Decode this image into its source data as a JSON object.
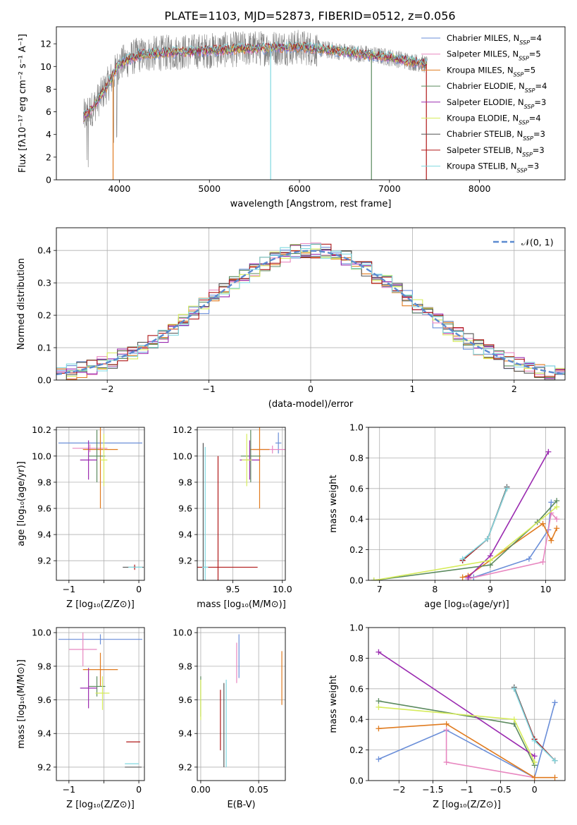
{
  "title": "PLATE=1103, MJD=52873, FIBERID=0512, z=0.056",
  "colors": {
    "chabrier_miles": "#6a8ed8",
    "salpeter_miles": "#e887c0",
    "kroupa_miles": "#e07b1f",
    "chabrier_elodie": "#5b8a5e",
    "salpeter_elodie": "#9a2ab0",
    "kroupa_elodie": "#d6ec5a",
    "chabrier_stelib": "#555555",
    "salpeter_stelib": "#b01818",
    "kroupa_stelib": "#7fd8e0",
    "data_spectrum": "#808080",
    "normal_curve": "#5b8ad0"
  },
  "legend_spectrum": [
    {
      "pre": "Chabrier MILES, N",
      "sub": "SSP",
      "post": "=4",
      "color": "#6a8ed8"
    },
    {
      "pre": "Salpeter MILES, N",
      "sub": "SSP",
      "post": "=5",
      "color": "#e887c0"
    },
    {
      "pre": "Kroupa MILES, N",
      "sub": "SSP",
      "post": "=5",
      "color": "#e07b1f"
    },
    {
      "pre": "Chabrier ELODIE, N",
      "sub": "SSP",
      "post": "=4",
      "color": "#5b8a5e"
    },
    {
      "pre": "Salpeter ELODIE, N",
      "sub": "SSP",
      "post": "=3",
      "color": "#9a2ab0"
    },
    {
      "pre": "Kroupa ELODIE, N",
      "sub": "SSP",
      "post": "=4",
      "color": "#d6ec5a"
    },
    {
      "pre": "Chabrier STELIB, N",
      "sub": "SSP",
      "post": "=3",
      "color": "#555555"
    },
    {
      "pre": "Salpeter STELIB, N",
      "sub": "SSP",
      "post": "=3",
      "color": "#b01818"
    },
    {
      "pre": "Kroupa STELIB, N",
      "sub": "SSP",
      "post": "=3",
      "color": "#7fd8e0"
    }
  ],
  "chart_data": [
    {
      "type": "line",
      "id": "spectrum",
      "xlabel": "wavelength [Angstrom, rest frame]",
      "ylabel": "Flux [fλ10⁻¹⁷ erg cm⁻² s⁻¹ A⁻¹]",
      "xlim": [
        3300,
        8950
      ],
      "ylim": [
        0,
        13.5
      ],
      "xticks": [
        4000,
        5000,
        6000,
        7000,
        8000
      ],
      "yticks": [
        0,
        2,
        4,
        6,
        8,
        10,
        12
      ],
      "model_continuum": {
        "x": [
          3600,
          3700,
          3800,
          3900,
          4000,
          4200,
          4500,
          5000,
          5500,
          6000,
          6500,
          7000,
          7400
        ],
        "y": [
          5.5,
          6.3,
          7.5,
          8.8,
          10.2,
          11.0,
          11.2,
          11.4,
          11.6,
          11.7,
          11.3,
          10.8,
          10.2
        ]
      }
    },
    {
      "type": "histogram",
      "id": "residuals",
      "xlabel": "(data-model)/error",
      "ylabel": "Normed distribution",
      "xlim": [
        -2.5,
        2.5
      ],
      "ylim": [
        0,
        0.47
      ],
      "xticks": [
        -2,
        -1,
        0,
        1,
        2
      ],
      "yticks": [
        0.0,
        0.1,
        0.2,
        0.3,
        0.4
      ],
      "legend": "𝒩(0, 1)",
      "bin_width": 0.1
    },
    {
      "type": "scatter",
      "id": "age_vs_Z",
      "xlabel": "Z [log₁₀(Z/Z⊙)]",
      "ylabel": "age  [log₁₀(age/yr)]",
      "xlim": [
        -1.18,
        0.08
      ],
      "ylim": [
        9.05,
        10.22
      ],
      "xticks": [
        -1,
        -0.5,
        0
      ],
      "xticklabels": [
        "−1",
        "",
        "0"
      ],
      "yticks": [
        9.2,
        9.4,
        9.6,
        9.8,
        10.0,
        10.2
      ],
      "points": [
        {
          "x": -0.55,
          "y": 10.1,
          "xerr": 0.6,
          "yerr": 0.02,
          "color": "#6a8ed8"
        },
        {
          "x": -0.7,
          "y": 10.06,
          "xerr": 0.25,
          "yerr": 0.03,
          "color": "#e887c0"
        },
        {
          "x": -0.55,
          "y": 10.05,
          "xerr": 0.25,
          "yerr": 0.45,
          "color": "#e07b1f"
        },
        {
          "x": -0.6,
          "y": 10.0,
          "xerr": 0.12,
          "yerr": 0.2,
          "color": "#5b8a5e"
        },
        {
          "x": -0.72,
          "y": 9.97,
          "xerr": 0.12,
          "yerr": 0.15,
          "color": "#9a2ab0"
        },
        {
          "x": -0.5,
          "y": 9.97,
          "xerr": 0.05,
          "yerr": 0.2,
          "color": "#d6ec5a"
        },
        {
          "x": -0.08,
          "y": 9.15,
          "xerr": 0.15,
          "yerr": 0.0,
          "color": "#555555"
        },
        {
          "x": -0.06,
          "y": 9.15,
          "xerr": 0.02,
          "yerr": 0.02,
          "color": "#b01818"
        },
        {
          "x": -0.05,
          "y": 9.15,
          "xerr": 0.1,
          "yerr": 0.0,
          "color": "#7fd8e0"
        }
      ]
    },
    {
      "type": "scatter",
      "id": "age_vs_mass",
      "xlabel": "mass [log₁₀(M/M⊙)]",
      "ylabel": "",
      "xlim": [
        9.14,
        10.03
      ],
      "ylim": [
        9.05,
        10.22
      ],
      "xticks": [
        9.5,
        10.0
      ],
      "xticklabels": [
        "9.5",
        "10.0"
      ],
      "yticks": [
        9.2,
        9.4,
        9.6,
        9.8,
        10.0,
        10.2
      ],
      "points": [
        {
          "x": 9.96,
          "y": 10.1,
          "xerr": 0.03,
          "yerr": 0.08,
          "color": "#6a8ed8"
        },
        {
          "x": 9.9,
          "y": 10.05,
          "xerr": 0.2,
          "yerr": 0.03,
          "color": "#e887c0"
        },
        {
          "x": 9.77,
          "y": 10.05,
          "xerr": 0.1,
          "yerr": 0.45,
          "color": "#e07b1f"
        },
        {
          "x": 9.68,
          "y": 10.0,
          "xerr": 0.1,
          "yerr": 0.2,
          "color": "#5b8a5e"
        },
        {
          "x": 9.67,
          "y": 9.97,
          "xerr": 0.1,
          "yerr": 0.15,
          "color": "#9a2ab0"
        },
        {
          "x": 9.64,
          "y": 9.97,
          "xerr": 0.05,
          "yerr": 0.2,
          "color": "#d6ec5a"
        },
        {
          "x": 9.2,
          "y": 9.15,
          "xerr": 0.0,
          "yerr": 0.95,
          "color": "#555555"
        },
        {
          "x": 9.35,
          "y": 9.15,
          "xerr": 0.4,
          "yerr": 0.85,
          "color": "#b01818"
        },
        {
          "x": 9.22,
          "y": 9.15,
          "xerr": 0.03,
          "yerr": 0.92,
          "color": "#7fd8e0"
        }
      ]
    },
    {
      "type": "line",
      "id": "weight_vs_age",
      "xlabel": "age  [log₁₀(age/yr)]",
      "ylabel": "mass weight",
      "xlim": [
        6.8,
        10.35
      ],
      "ylim": [
        0,
        1.0
      ],
      "xticks": [
        7,
        8,
        9,
        10
      ],
      "yticks": [
        0.0,
        0.2,
        0.4,
        0.6,
        0.8,
        1.0
      ],
      "series": [
        {
          "color": "#6a8ed8",
          "x": [
            8.7,
            9.7,
            10.05,
            10.1
          ],
          "y": [
            0.02,
            0.14,
            0.33,
            0.51
          ]
        },
        {
          "color": "#e887c0",
          "x": [
            8.6,
            9.95,
            10.1,
            10.2
          ],
          "y": [
            0.01,
            0.12,
            0.44,
            0.4
          ]
        },
        {
          "color": "#e07b1f",
          "x": [
            8.5,
            8.6,
            9.95,
            10.1,
            10.2
          ],
          "y": [
            0.02,
            0.03,
            0.37,
            0.26,
            0.34
          ]
        },
        {
          "color": "#5b8a5e",
          "x": [
            6.9,
            9.0,
            9.85,
            10.2
          ],
          "y": [
            0.0,
            0.1,
            0.38,
            0.52
          ]
        },
        {
          "color": "#9a2ab0",
          "x": [
            8.6,
            9.0,
            10.05
          ],
          "y": [
            0.02,
            0.16,
            0.84
          ]
        },
        {
          "color": "#d6ec5a",
          "x": [
            6.9,
            9.0,
            10.2
          ],
          "y": [
            0.0,
            0.13,
            0.48
          ]
        },
        {
          "color": "#555555",
          "x": [
            8.5,
            8.95,
            9.3
          ],
          "y": [
            0.13,
            0.27,
            0.61
          ]
        },
        {
          "color": "#b01818",
          "x": [
            8.5,
            8.95,
            9.3
          ],
          "y": [
            0.13,
            0.27,
            0.6
          ]
        },
        {
          "color": "#7fd8e0",
          "x": [
            8.5,
            8.95,
            9.3
          ],
          "y": [
            0.14,
            0.27,
            0.6
          ]
        }
      ]
    },
    {
      "type": "scatter",
      "id": "mass_vs_Z",
      "xlabel": "Z [log₁₀(Z/Z⊙)]",
      "ylabel": "mass [log₁₀(M/M⊙)]",
      "xlim": [
        -1.18,
        0.08
      ],
      "ylim": [
        9.12,
        10.03
      ],
      "xticks": [
        -1,
        -0.5,
        0
      ],
      "xticklabels": [
        "−1",
        "",
        "0"
      ],
      "yticks": [
        9.2,
        9.4,
        9.6,
        9.8,
        10.0
      ],
      "points": [
        {
          "x": -0.55,
          "y": 9.96,
          "xerr": 0.6,
          "yerr": 0.03,
          "color": "#6a8ed8"
        },
        {
          "x": -0.8,
          "y": 9.9,
          "xerr": 0.2,
          "yerr": 0.1,
          "color": "#e887c0"
        },
        {
          "x": -0.55,
          "y": 9.78,
          "xerr": 0.25,
          "yerr": 0.1,
          "color": "#e07b1f"
        },
        {
          "x": -0.6,
          "y": 9.68,
          "xerr": 0.12,
          "yerr": 0.06,
          "color": "#5b8a5e"
        },
        {
          "x": -0.72,
          "y": 9.67,
          "xerr": 0.12,
          "yerr": 0.12,
          "color": "#9a2ab0"
        },
        {
          "x": -0.52,
          "y": 9.64,
          "xerr": 0.1,
          "yerr": 0.1,
          "color": "#d6ec5a"
        },
        {
          "x": -0.08,
          "y": 9.2,
          "xerr": 0.12,
          "yerr": 0.0,
          "color": "#555555"
        },
        {
          "x": -0.08,
          "y": 9.35,
          "xerr": 0.1,
          "yerr": 0.0,
          "color": "#b01818"
        },
        {
          "x": -0.1,
          "y": 9.22,
          "xerr": 0.1,
          "yerr": 0.0,
          "color": "#7fd8e0"
        }
      ]
    },
    {
      "type": "scatter",
      "id": "mass_vs_ebv",
      "xlabel": "E(B-V)",
      "ylabel": "",
      "xlim": [
        -0.003,
        0.073
      ],
      "ylim": [
        9.12,
        10.03
      ],
      "xticks": [
        0.0,
        0.05
      ],
      "xticklabels": [
        "0.00",
        "0.05"
      ],
      "yticks": [
        9.2,
        9.4,
        9.6,
        9.8,
        10.0
      ],
      "points": [
        {
          "x": 0.033,
          "y": 9.86,
          "xerr": 0.0,
          "yerr": 0.13,
          "color": "#6a8ed8"
        },
        {
          "x": 0.031,
          "y": 9.82,
          "xerr": 0.0,
          "yerr": 0.12,
          "color": "#e887c0"
        },
        {
          "x": 0.07,
          "y": 9.73,
          "xerr": 0.0,
          "yerr": 0.16,
          "color": "#e07b1f"
        },
        {
          "x": 0.0,
          "y": 9.62,
          "xerr": 0.0,
          "yerr": 0.12,
          "color": "#5b8a5e"
        },
        {
          "x": 0.0,
          "y": 9.6,
          "xerr": 0.0,
          "yerr": 0.12,
          "color": "#d6ec5a"
        },
        {
          "x": 0.017,
          "y": 9.48,
          "xerr": 0.0,
          "yerr": 0.18,
          "color": "#b01818"
        },
        {
          "x": 0.022,
          "y": 9.46,
          "xerr": 0.0,
          "yerr": 0.26,
          "color": "#7fd8e0"
        },
        {
          "x": 0.02,
          "y": 9.45,
          "xerr": 0.0,
          "yerr": 0.25,
          "color": "#555555"
        }
      ]
    },
    {
      "type": "line",
      "id": "weight_vs_Z",
      "xlabel": "Z [log₁₀(Z/Z⊙)]",
      "ylabel": "mass weight",
      "xlim": [
        -2.45,
        0.45
      ],
      "ylim": [
        0,
        1.0
      ],
      "xticks": [
        -2.0,
        -1.5,
        -1.0,
        -0.5,
        0.0
      ],
      "yticks": [
        0.0,
        0.2,
        0.4,
        0.6,
        0.8,
        1.0
      ],
      "series": [
        {
          "color": "#6a8ed8",
          "x": [
            -2.3,
            -1.3,
            0.0,
            0.3
          ],
          "y": [
            0.14,
            0.33,
            0.02,
            0.51
          ]
        },
        {
          "color": "#e887c0",
          "x": [
            -1.3,
            -1.3,
            0.0
          ],
          "y": [
            0.33,
            0.12,
            0.02
          ]
        },
        {
          "color": "#e07b1f",
          "x": [
            -2.3,
            -1.3,
            0.0,
            0.3
          ],
          "y": [
            0.34,
            0.37,
            0.02,
            0.02
          ]
        },
        {
          "color": "#5b8a5e",
          "x": [
            -2.3,
            -0.3,
            0.0
          ],
          "y": [
            0.52,
            0.37,
            0.1
          ]
        },
        {
          "color": "#9a2ab0",
          "x": [
            -2.3,
            0.0
          ],
          "y": [
            0.84,
            0.16
          ]
        },
        {
          "color": "#d6ec5a",
          "x": [
            -2.3,
            -0.3,
            0.0
          ],
          "y": [
            0.48,
            0.4,
            0.12
          ]
        },
        {
          "color": "#555555",
          "x": [
            -0.3,
            0.0,
            0.3
          ],
          "y": [
            0.61,
            0.27,
            0.13
          ]
        },
        {
          "color": "#b01818",
          "x": [
            -0.3,
            0.0,
            0.3
          ],
          "y": [
            0.6,
            0.27,
            0.13
          ]
        },
        {
          "color": "#7fd8e0",
          "x": [
            -0.3,
            0.0,
            0.3
          ],
          "y": [
            0.6,
            0.26,
            0.13
          ]
        }
      ]
    }
  ]
}
